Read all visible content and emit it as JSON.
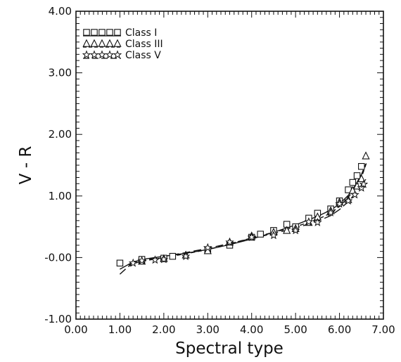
{
  "chart_data": {
    "type": "scatter",
    "title": "",
    "xlabel": "Spectral type",
    "ylabel": "V - R",
    "xlim": [
      0,
      7
    ],
    "ylim": [
      -1,
      4
    ],
    "xticks": [
      "0.00",
      "1.00",
      "2.00",
      "3.00",
      "4.00",
      "5.00",
      "6.00",
      "7.00"
    ],
    "yticks": [
      "-1.00",
      "-0.00",
      "1.00",
      "2.00",
      "3.00",
      "4.00"
    ],
    "grid": false,
    "legend_position": "top-left",
    "series": [
      {
        "name": "Class I",
        "marker": "square",
        "line_style": "solid",
        "points": [
          [
            1.0,
            -0.09
          ],
          [
            1.5,
            -0.03
          ],
          [
            2.0,
            -0.01
          ],
          [
            2.2,
            0.02
          ],
          [
            3.0,
            0.12
          ],
          [
            3.5,
            0.2
          ],
          [
            4.0,
            0.33
          ],
          [
            4.2,
            0.38
          ],
          [
            4.5,
            0.44
          ],
          [
            4.8,
            0.54
          ],
          [
            5.0,
            0.5
          ],
          [
            5.3,
            0.64
          ],
          [
            5.5,
            0.72
          ],
          [
            5.8,
            0.79
          ],
          [
            6.0,
            0.92
          ],
          [
            6.2,
            1.1
          ],
          [
            6.3,
            1.22
          ],
          [
            6.4,
            1.33
          ],
          [
            6.5,
            1.48
          ]
        ],
        "fit": [
          [
            1.0,
            -0.19
          ],
          [
            1.3,
            -0.07
          ],
          [
            1.6,
            -0.02
          ],
          [
            2.0,
            0.02
          ],
          [
            2.5,
            0.07
          ],
          [
            3.0,
            0.13
          ],
          [
            3.5,
            0.21
          ],
          [
            4.0,
            0.3
          ],
          [
            4.5,
            0.41
          ],
          [
            5.0,
            0.53
          ],
          [
            5.5,
            0.67
          ],
          [
            5.8,
            0.77
          ],
          [
            6.0,
            0.87
          ],
          [
            6.2,
            1.01
          ],
          [
            6.35,
            1.16
          ],
          [
            6.5,
            1.35
          ],
          [
            6.6,
            1.52
          ]
        ]
      },
      {
        "name": "Class III",
        "marker": "triangle",
        "line_style": "dashed",
        "points": [
          [
            1.5,
            -0.06
          ],
          [
            2.0,
            -0.02
          ],
          [
            2.5,
            0.04
          ],
          [
            3.0,
            0.11
          ],
          [
            3.5,
            0.25
          ],
          [
            4.0,
            0.35
          ],
          [
            4.5,
            0.41
          ],
          [
            4.8,
            0.44
          ],
          [
            5.0,
            0.47
          ],
          [
            5.3,
            0.57
          ],
          [
            5.5,
            0.66
          ],
          [
            5.8,
            0.76
          ],
          [
            6.0,
            0.9
          ],
          [
            6.2,
            0.94
          ],
          [
            6.3,
            1.09
          ],
          [
            6.4,
            1.16
          ],
          [
            6.5,
            1.28
          ],
          [
            6.6,
            1.65
          ]
        ],
        "fit": [
          [
            1.2,
            -0.12
          ],
          [
            1.5,
            -0.06
          ],
          [
            2.0,
            0.0
          ],
          [
            2.5,
            0.06
          ],
          [
            3.0,
            0.13
          ],
          [
            3.5,
            0.22
          ],
          [
            4.0,
            0.32
          ],
          [
            4.5,
            0.41
          ],
          [
            5.0,
            0.5
          ],
          [
            5.5,
            0.62
          ],
          [
            5.8,
            0.72
          ],
          [
            6.0,
            0.83
          ],
          [
            6.2,
            0.98
          ],
          [
            6.35,
            1.12
          ],
          [
            6.5,
            1.3
          ],
          [
            6.62,
            1.55
          ]
        ]
      },
      {
        "name": "Class V",
        "marker": "star",
        "line_style": "long-dash",
        "points": [
          [
            1.3,
            -0.09
          ],
          [
            1.5,
            -0.05
          ],
          [
            1.8,
            -0.04
          ],
          [
            2.0,
            -0.03
          ],
          [
            2.5,
            0.02
          ],
          [
            3.0,
            0.16
          ],
          [
            3.5,
            0.25
          ],
          [
            4.0,
            0.33
          ],
          [
            4.5,
            0.36
          ],
          [
            5.0,
            0.44
          ],
          [
            5.3,
            0.58
          ],
          [
            5.5,
            0.57
          ],
          [
            5.8,
            0.73
          ],
          [
            6.0,
            0.87
          ],
          [
            6.2,
            0.92
          ],
          [
            6.35,
            1.02
          ],
          [
            6.5,
            1.13
          ],
          [
            6.55,
            1.19
          ]
        ],
        "fit": [
          [
            1.0,
            -0.27
          ],
          [
            1.2,
            -0.14
          ],
          [
            1.5,
            -0.05
          ],
          [
            2.0,
            0.02
          ],
          [
            2.5,
            0.08
          ],
          [
            3.0,
            0.15
          ],
          [
            3.5,
            0.23
          ],
          [
            4.0,
            0.31
          ],
          [
            4.5,
            0.39
          ],
          [
            5.0,
            0.48
          ],
          [
            5.5,
            0.59
          ],
          [
            5.8,
            0.68
          ],
          [
            6.0,
            0.78
          ],
          [
            6.2,
            0.91
          ],
          [
            6.4,
            1.07
          ],
          [
            6.6,
            1.27
          ]
        ]
      }
    ]
  }
}
